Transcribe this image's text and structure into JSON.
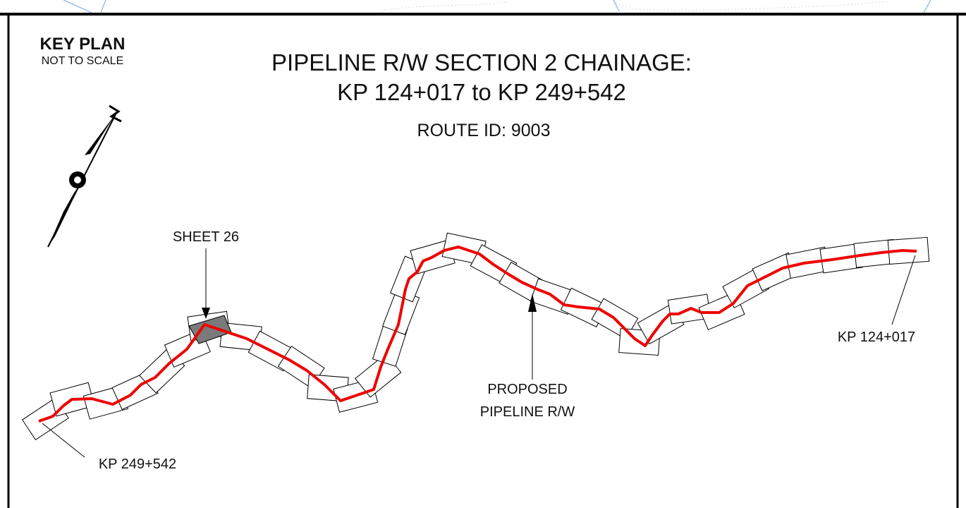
{
  "key_plan": {
    "title": "KEY PLAN",
    "subtitle": "NOT TO SCALE"
  },
  "header": {
    "title_line1": "PIPELINE R/W SECTION 2 CHAINAGE:",
    "title_line2": "KP 124+017 to KP 249+542",
    "route_id": "ROUTE ID: 9003"
  },
  "labels": {
    "sheet": "SHEET 26",
    "proposed_line1": "PROPOSED",
    "proposed_line2": "PIPELINE R/W",
    "kp_start": "KP 124+017",
    "kp_end": "KP 249+542"
  }
}
